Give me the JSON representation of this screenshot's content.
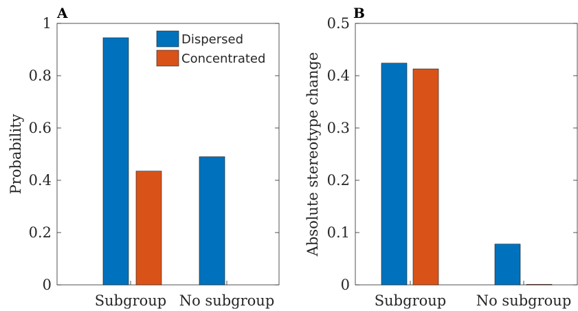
{
  "chart_data": [
    {
      "type": "bar",
      "panel_label": "A",
      "categories": [
        "Subgroup",
        "No subgroup"
      ],
      "series": [
        {
          "name": "Dispersed",
          "color": "#0072BD",
          "values": [
            0.945,
            0.49
          ]
        },
        {
          "name": "Concentrated",
          "color": "#D95319",
          "values": [
            0.435,
            0
          ]
        }
      ],
      "ylabel": "Probability",
      "xlabel": "",
      "ylim": [
        0,
        1
      ],
      "yticks": [
        "0",
        "0.2",
        "0.4",
        "0.6",
        "0.8",
        "1"
      ],
      "legend": "top-right"
    },
    {
      "type": "bar",
      "panel_label": "B",
      "categories": [
        "Subgroup",
        "No subgroup"
      ],
      "series": [
        {
          "name": "Dispersed",
          "color": "#0072BD",
          "values": [
            0.424,
            0.078
          ]
        },
        {
          "name": "Concentrated",
          "color": "#D95319",
          "values": [
            0.413,
            0.001
          ]
        }
      ],
      "ylabel": "Absolute stereotype change",
      "xlabel": "",
      "ylim": [
        0,
        0.5
      ],
      "yticks": [
        "0",
        "0.1",
        "0.2",
        "0.3",
        "0.4",
        "0.5"
      ]
    }
  ]
}
